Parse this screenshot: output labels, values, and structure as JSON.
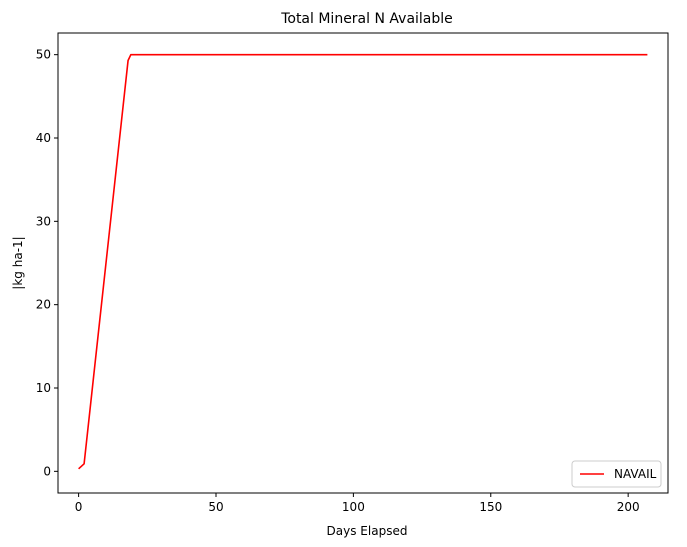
{
  "chart_data": {
    "type": "line",
    "title": "Total Mineral N Available",
    "xlabel": "Days Elapsed",
    "ylabel": "|kg ha-1|",
    "xlim": [
      -7.5,
      214.5
    ],
    "ylim": [
      -2.6,
      52.6
    ],
    "xticks": [
      0,
      50,
      100,
      150,
      200
    ],
    "yticks": [
      0,
      10,
      20,
      30,
      40,
      50
    ],
    "grid": false,
    "legend_position": "lower-right",
    "series": [
      {
        "name": "NAVAIL",
        "color": "#ff0000",
        "x": [
          0,
          2,
          18,
          19,
          20,
          50,
          100,
          150,
          207
        ],
        "y": [
          0.3,
          0.9,
          49.3,
          50.0,
          50.0,
          50.0,
          50.0,
          50.0,
          50.0
        ]
      }
    ]
  }
}
